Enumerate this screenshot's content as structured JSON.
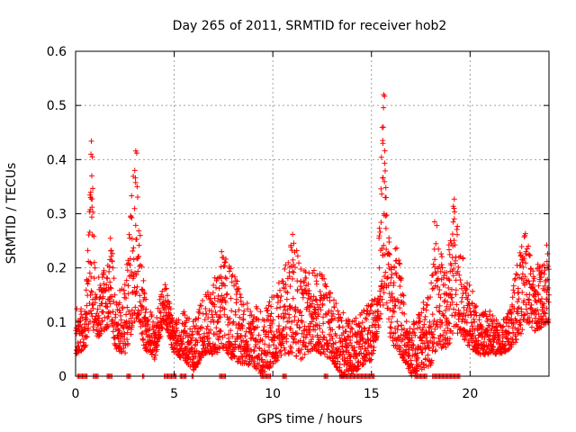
{
  "chart_data": {
    "type": "scatter",
    "title": "Day 265 of 2011, SRMTID for receiver hob2",
    "xlabel": "GPS time / hours",
    "ylabel": "SRMTID / TECUs",
    "xlim": [
      0,
      24
    ],
    "ylim": [
      0,
      0.6
    ],
    "xticks": [
      "0",
      "5",
      "10",
      "15",
      "20"
    ],
    "yticks": [
      "0",
      "0.1",
      "0.2",
      "0.3",
      "0.4",
      "0.5",
      "0.6"
    ],
    "grid": true,
    "marker": "+",
    "color": "#ff0000",
    "series": [
      {
        "name": "hob2",
        "envelope": [
          [
            0.0,
            0.04,
            0.13
          ],
          [
            0.5,
            0.05,
            0.12
          ],
          [
            0.8,
            0.1,
            0.43
          ],
          [
            1.0,
            0.07,
            0.18
          ],
          [
            1.5,
            0.08,
            0.2
          ],
          [
            1.8,
            0.1,
            0.27
          ],
          [
            2.0,
            0.05,
            0.16
          ],
          [
            2.5,
            0.04,
            0.17
          ],
          [
            3.0,
            0.1,
            0.41
          ],
          [
            3.2,
            0.1,
            0.3
          ],
          [
            3.5,
            0.05,
            0.15
          ],
          [
            4.0,
            0.03,
            0.1
          ],
          [
            4.5,
            0.1,
            0.18
          ],
          [
            5.0,
            0.04,
            0.1
          ],
          [
            5.5,
            0.03,
            0.12
          ],
          [
            6.0,
            0.01,
            0.1
          ],
          [
            6.5,
            0.04,
            0.15
          ],
          [
            7.0,
            0.04,
            0.18
          ],
          [
            7.5,
            0.05,
            0.23
          ],
          [
            8.0,
            0.03,
            0.2
          ],
          [
            8.5,
            0.02,
            0.14
          ],
          [
            9.0,
            0.02,
            0.13
          ],
          [
            9.5,
            0.0,
            0.13
          ],
          [
            10.0,
            0.02,
            0.15
          ],
          [
            10.5,
            0.04,
            0.2
          ],
          [
            11.0,
            0.04,
            0.26
          ],
          [
            11.5,
            0.03,
            0.2
          ],
          [
            12.0,
            0.05,
            0.2
          ],
          [
            12.5,
            0.04,
            0.19
          ],
          [
            13.0,
            0.03,
            0.15
          ],
          [
            13.5,
            0.0,
            0.12
          ],
          [
            14.0,
            0.0,
            0.1
          ],
          [
            14.5,
            0.02,
            0.12
          ],
          [
            15.0,
            0.03,
            0.14
          ],
          [
            15.3,
            0.08,
            0.17
          ],
          [
            15.6,
            0.12,
            0.52
          ],
          [
            15.8,
            0.12,
            0.33
          ],
          [
            16.0,
            0.06,
            0.2
          ],
          [
            16.3,
            0.05,
            0.25
          ],
          [
            16.8,
            0.02,
            0.1
          ],
          [
            17.0,
            0.0,
            0.09
          ],
          [
            17.5,
            0.01,
            0.13
          ],
          [
            18.0,
            0.02,
            0.17
          ],
          [
            18.3,
            0.05,
            0.28
          ],
          [
            18.8,
            0.05,
            0.21
          ],
          [
            19.2,
            0.07,
            0.33
          ],
          [
            19.5,
            0.08,
            0.24
          ],
          [
            20.0,
            0.05,
            0.17
          ],
          [
            20.5,
            0.04,
            0.12
          ],
          [
            21.0,
            0.04,
            0.12
          ],
          [
            21.5,
            0.04,
            0.1
          ],
          [
            22.0,
            0.05,
            0.12
          ],
          [
            22.5,
            0.07,
            0.24
          ],
          [
            22.8,
            0.1,
            0.27
          ],
          [
            23.2,
            0.08,
            0.2
          ],
          [
            23.6,
            0.09,
            0.23
          ],
          [
            24.0,
            0.1,
            0.27
          ]
        ],
        "peaks": [
          [
            0.8,
            0.434
          ],
          [
            0.78,
            0.41
          ],
          [
            0.85,
            0.405
          ],
          [
            0.82,
            0.37
          ],
          [
            0.76,
            0.33
          ],
          [
            3.05,
            0.416
          ],
          [
            3.1,
            0.412
          ],
          [
            3.0,
            0.38
          ],
          [
            3.12,
            0.35
          ],
          [
            15.62,
            0.52
          ],
          [
            15.66,
            0.517
          ],
          [
            15.6,
            0.46
          ],
          [
            15.58,
            0.43
          ],
          [
            15.7,
            0.33
          ],
          [
            15.74,
            0.33
          ],
          [
            15.64,
            0.3
          ],
          [
            19.2,
            0.327
          ],
          [
            18.2,
            0.285
          ],
          [
            11.0,
            0.262
          ],
          [
            7.4,
            0.23
          ]
        ],
        "zeros": [
          [
            0.1,
            0.6
          ],
          [
            0.9,
            1.2
          ],
          [
            1.6,
            1.9
          ],
          [
            2.6,
            2.8
          ],
          [
            3.4,
            3.5
          ],
          [
            4.5,
            5.1
          ],
          [
            5.3,
            5.6
          ],
          [
            5.9,
            6.0
          ],
          [
            7.3,
            7.6
          ],
          [
            9.4,
            9.9
          ],
          [
            10.5,
            10.7
          ],
          [
            12.6,
            12.8
          ],
          [
            13.4,
            15.2
          ],
          [
            17.2,
            17.8
          ],
          [
            18.1,
            19.5
          ]
        ]
      }
    ]
  }
}
